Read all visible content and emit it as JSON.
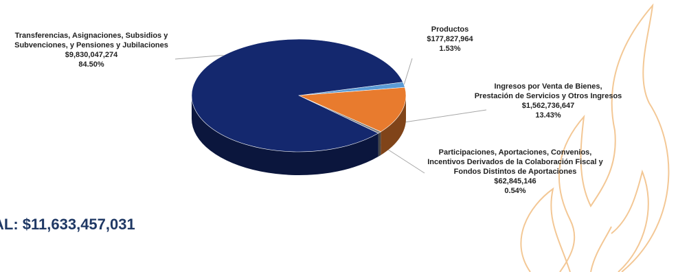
{
  "total_label": "AL: $11,633,457,031",
  "colors": {
    "navy": "#14286e",
    "orange": "#e87b2e",
    "blue": "#5b9bd5",
    "gray": "#7f7f7f",
    "flame": "#f2c28a"
  },
  "chart_data": {
    "type": "pie",
    "style": "3d",
    "slices": [
      {
        "label": "Productos",
        "value": 177827964,
        "value_text": "$177,827,964",
        "percent": 1.53,
        "percent_text": "1.53%",
        "color": "#5b9bd5"
      },
      {
        "label": "Ingresos por Venta de Bienes, Prestación de Servicios y Otros Ingresos",
        "label_lines": [
          "Ingresos por Venta de Bienes,",
          "Prestación de Servicios y Otros Ingresos"
        ],
        "value": 1562736647,
        "value_text": "$1,562,736,647",
        "percent": 13.43,
        "percent_text": "13.43%",
        "color": "#e87b2e"
      },
      {
        "label": "Participaciones, Aportaciones, Convenios, Incentivos Derivados de la Colaboración Fiscal y Fondos Distintos de Aportaciones",
        "label_lines": [
          "Participaciones, Aportaciones, Convenios,",
          "Incentivos Derivados de la Colaboración Fiscal y",
          "Fondos Distintos de Aportaciones"
        ],
        "value": 62845146,
        "value_text": "$62,845,146",
        "percent": 0.54,
        "percent_text": "0.54%",
        "color": "#7f7f7f"
      },
      {
        "label": "Transferencias, Asignaciones, Subsidios y Subvenciones, y Pensiones y Jubilaciones",
        "label_lines": [
          "Transferencias, Asignaciones, Subsidios y",
          "Subvenciones, y Pensiones y Jubilaciones"
        ],
        "value": 9830047274,
        "value_text": "$9,830,047,274",
        "percent": 84.5,
        "percent_text": "84.50%",
        "color": "#14286e"
      }
    ]
  }
}
